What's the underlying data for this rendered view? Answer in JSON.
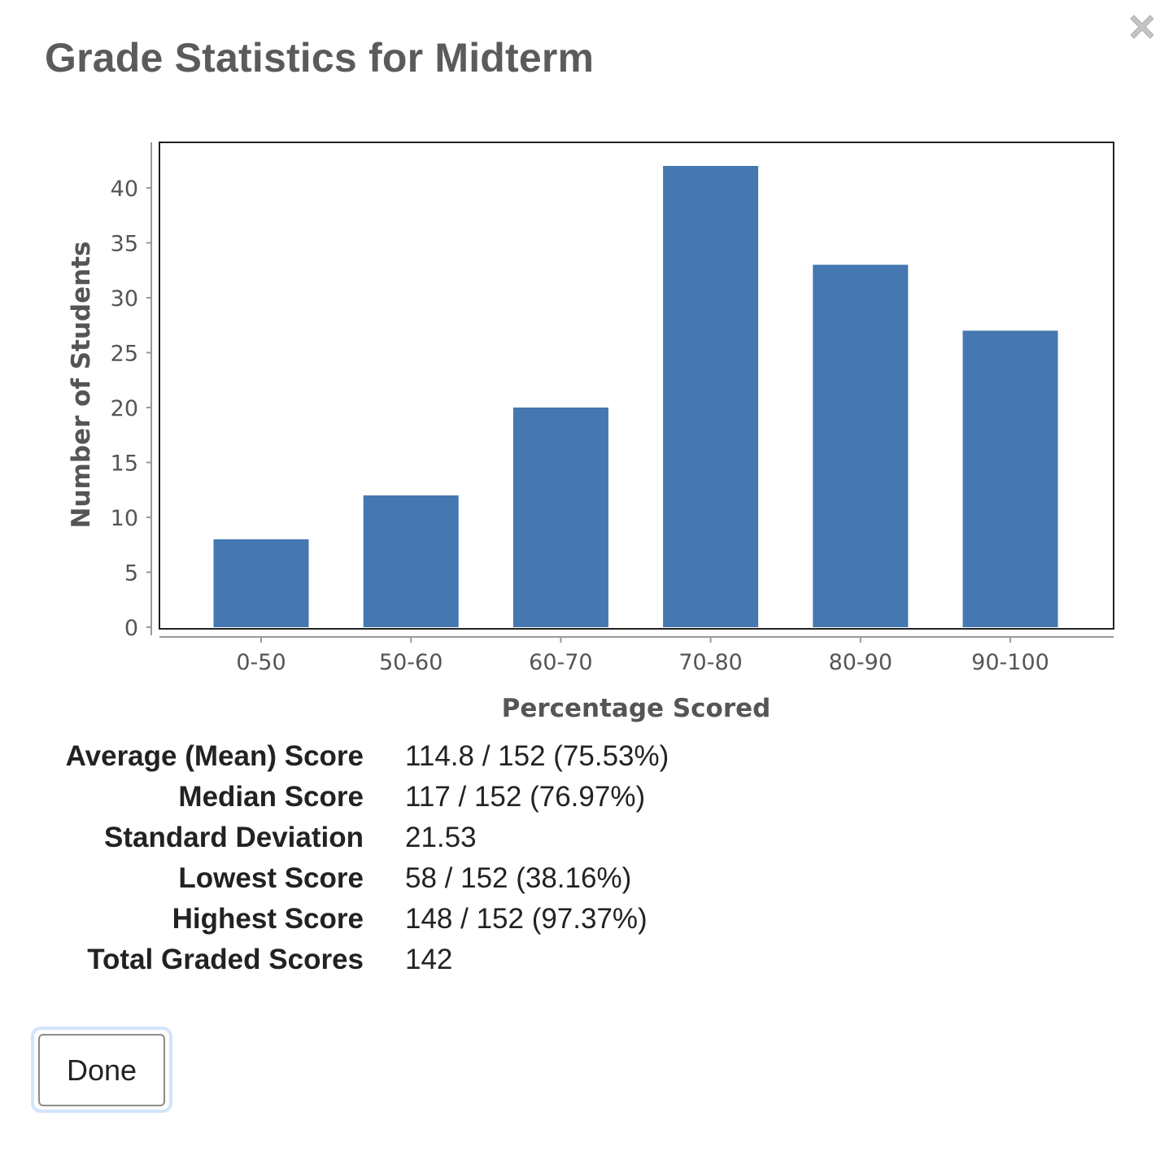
{
  "dialog": {
    "title": "Grade Statistics for Midterm",
    "close_icon": "close-icon",
    "done_label": "Done"
  },
  "chart_data": {
    "type": "bar",
    "title": "",
    "xlabel": "Percentage Scored",
    "ylabel": "Number of Students",
    "categories": [
      "0-50",
      "50-60",
      "60-70",
      "70-80",
      "80-90",
      "90-100"
    ],
    "values": [
      8,
      12,
      20,
      42,
      33,
      27
    ],
    "ylim": [
      0,
      44
    ],
    "yticks": [
      0,
      5,
      10,
      15,
      20,
      25,
      30,
      35,
      40
    ],
    "bar_color": "#4577b0",
    "grid": false,
    "legend": "none"
  },
  "stats": [
    {
      "label": "Average (Mean) Score",
      "value": "114.8 / 152 (75.53%)"
    },
    {
      "label": "Median Score",
      "value": "117 / 152 (76.97%)"
    },
    {
      "label": "Standard Deviation",
      "value": "21.53"
    },
    {
      "label": "Lowest Score",
      "value": "58 / 152 (38.16%)"
    },
    {
      "label": "Highest Score",
      "value": "148 / 152 (97.37%)"
    },
    {
      "label": "Total Graded Scores",
      "value": "142"
    }
  ],
  "colors": {
    "title": "#5b5b5b",
    "text": "#222222",
    "bar": "#4577b0",
    "axis_text": "#555555",
    "focus_ring": "#d4e4fb"
  }
}
